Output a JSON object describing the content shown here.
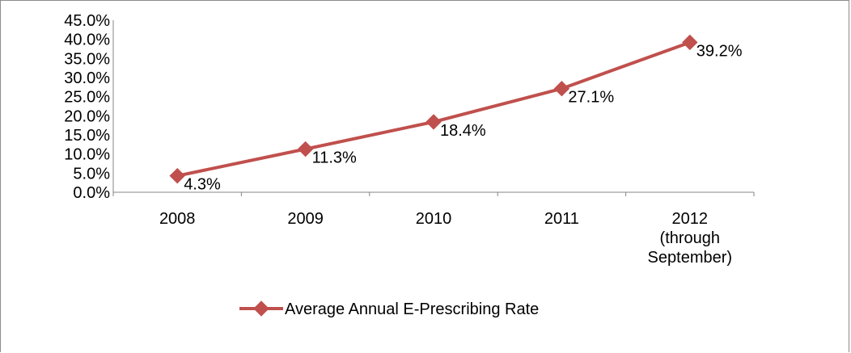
{
  "chart_data": {
    "type": "line",
    "categories": [
      [
        "2008"
      ],
      [
        "2009"
      ],
      [
        "2010"
      ],
      [
        "2011"
      ],
      [
        "2012",
        "(through",
        "September)"
      ]
    ],
    "series": [
      {
        "name": "Average Annual E-Prescribing Rate",
        "values": [
          4.3,
          11.3,
          18.4,
          27.1,
          39.2
        ],
        "value_labels": [
          "4.3%",
          "11.3%",
          "18.4%",
          "27.1%",
          "39.2%"
        ],
        "color": "#c0504d",
        "marker": "diamond"
      }
    ],
    "y_ticks": [
      "0.0%",
      "5.0%",
      "10.0%",
      "15.0%",
      "20.0%",
      "25.0%",
      "30.0%",
      "35.0%",
      "40.0%",
      "45.0%"
    ],
    "ylim": [
      0,
      45
    ],
    "title": "",
    "xlabel": "",
    "ylabel": "",
    "grid": false,
    "legend_position": "bottom",
    "axis_color": "#868686"
  }
}
